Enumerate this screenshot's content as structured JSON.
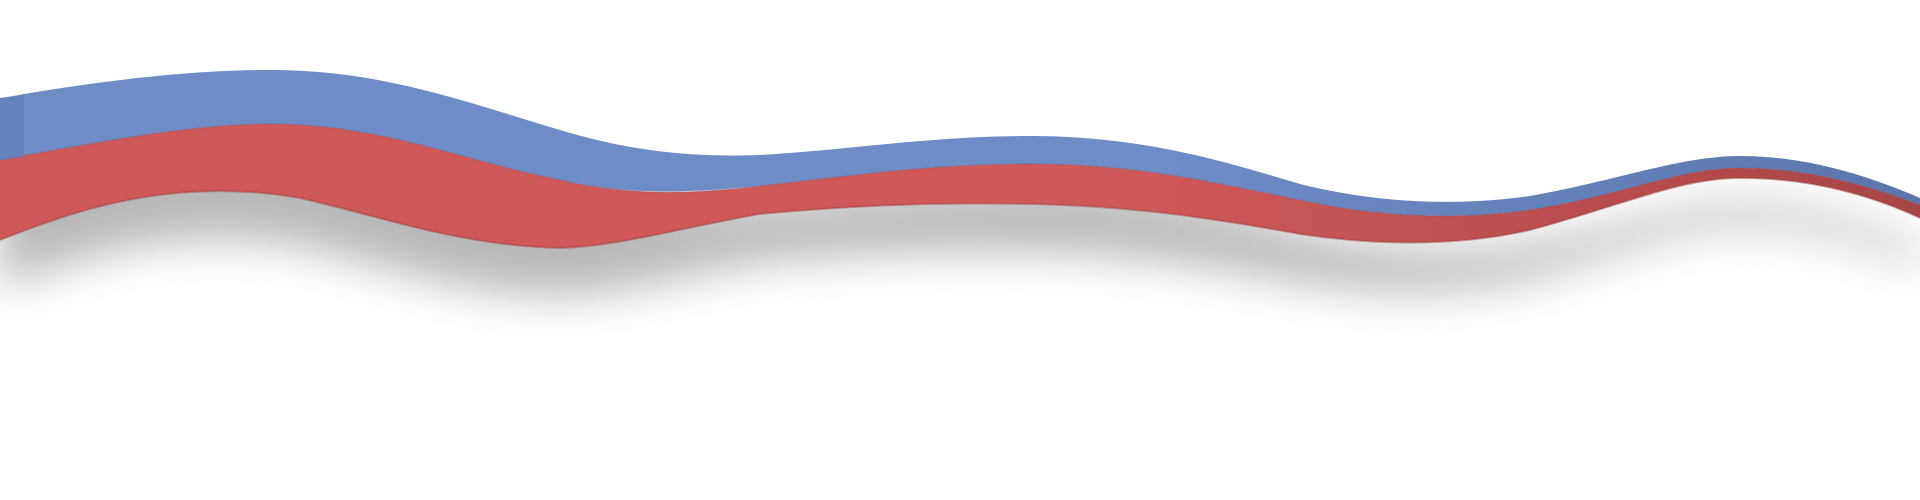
{
  "image": {
    "background": "#ffffff",
    "ribbons": [
      {
        "name": "blue-ribbon",
        "fill": "#6e8cc6",
        "edge": "#5b76ab"
      },
      {
        "name": "red-ribbon",
        "fill": "#cf5858",
        "edge": "#a84545"
      }
    ],
    "shadow_color": "#000000"
  }
}
